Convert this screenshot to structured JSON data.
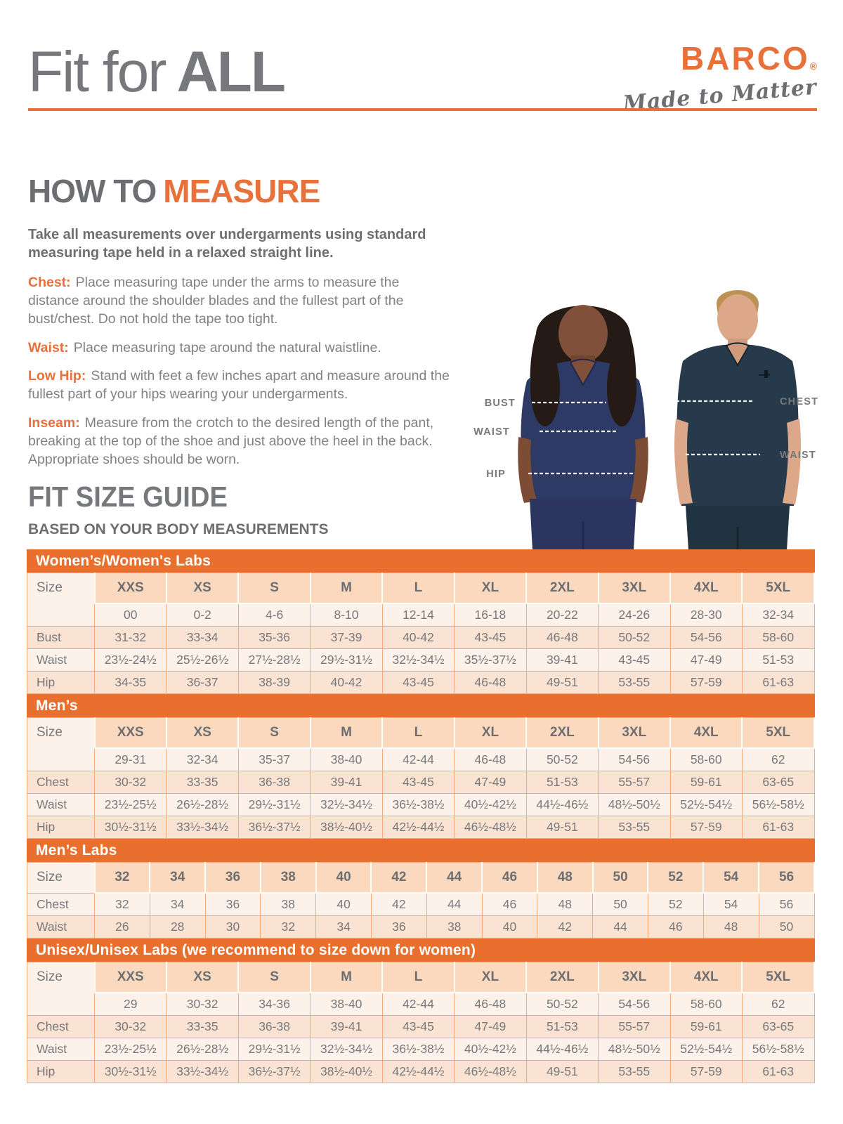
{
  "header": {
    "title_light": "Fit for",
    "title_bold": "ALL",
    "brand": "BARCO",
    "brand_reg": "®",
    "tagline": "Made to Matter"
  },
  "how_to_measure": {
    "title_gray": "HOW TO",
    "title_orange": "MEASURE",
    "intro": "Take all measurements over undergarments using standard measuring tape held in a relaxed straight line.",
    "items": [
      {
        "label": "Chest:",
        "text": "Place measuring tape under the arms to measure the distance around the shoulder blades and the fullest part of the bust/chest. Do not hold the tape too tight."
      },
      {
        "label": "Waist:",
        "text": "Place measuring tape around the natural waistline."
      },
      {
        "label": "Low Hip:",
        "text": "Stand with feet a few inches apart and measure around the fullest part of your hips wearing your undergarments."
      },
      {
        "label": "Inseam:",
        "text": "Measure from the crotch to the desired length of the pant, breaking at the top of the shoe and just above the heel in the back. Appropriate shoes should be worn."
      }
    ]
  },
  "figure": {
    "labels": {
      "bust": "BUST",
      "waist_left": "WAIST",
      "hip": "HIP",
      "chest": "CHEST",
      "waist_right": "WAIST"
    }
  },
  "size_guide": {
    "title": "FIT SIZE GUIDE",
    "subtitle": "BASED ON YOUR BODY MEASUREMENTS",
    "size_label": "Size",
    "tables": [
      {
        "banner": "Women’s/Women's Labs",
        "sizes": [
          "XXS",
          "XS",
          "S",
          "M",
          "L",
          "XL",
          "2XL",
          "3XL",
          "4XL",
          "5XL"
        ],
        "numeric": [
          "00",
          "0-2",
          "4-6",
          "8-10",
          "12-14",
          "16-18",
          "20-22",
          "24-26",
          "28-30",
          "32-34"
        ],
        "rows": [
          {
            "label": "Bust",
            "values": [
              "31-32",
              "33-34",
              "35-36",
              "37-39",
              "40-42",
              "43-45",
              "46-48",
              "50-52",
              "54-56",
              "58-60"
            ]
          },
          {
            "label": "Waist",
            "values": [
              "23½-24½",
              "25½-26½",
              "27½-28½",
              "29½-31½",
              "32½-34½",
              "35½-37½",
              "39-41",
              "43-45",
              "47-49",
              "51-53"
            ]
          },
          {
            "label": "Hip",
            "values": [
              "34-35",
              "36-37",
              "38-39",
              "40-42",
              "43-45",
              "46-48",
              "49-51",
              "53-55",
              "57-59",
              "61-63"
            ]
          }
        ]
      },
      {
        "banner": "Men’s",
        "sizes": [
          "XXS",
          "XS",
          "S",
          "M",
          "L",
          "XL",
          "2XL",
          "3XL",
          "4XL",
          "5XL"
        ],
        "numeric": [
          "29-31",
          "32-34",
          "35-37",
          "38-40",
          "42-44",
          "46-48",
          "50-52",
          "54-56",
          "58-60",
          "62"
        ],
        "rows": [
          {
            "label": "Chest",
            "values": [
              "30-32",
              "33-35",
              "36-38",
              "39-41",
              "43-45",
              "47-49",
              "51-53",
              "55-57",
              "59-61",
              "63-65"
            ]
          },
          {
            "label": "Waist",
            "values": [
              "23½-25½",
              "26½-28½",
              "29½-31½",
              "32½-34½",
              "36½-38½",
              "40½-42½",
              "44½-46½",
              "48½-50½",
              "52½-54½",
              "56½-58½"
            ]
          },
          {
            "label": "Hip",
            "values": [
              "30½-31½",
              "33½-34½",
              "36½-37½",
              "38½-40½",
              "42½-44½",
              "46½-48½",
              "49-51",
              "53-55",
              "57-59",
              "61-63"
            ]
          }
        ]
      },
      {
        "banner": "Men’s Labs",
        "sizes": [
          "32",
          "34",
          "36",
          "38",
          "40",
          "42",
          "44",
          "46",
          "48",
          "50",
          "52",
          "54",
          "56"
        ],
        "numeric": null,
        "rows": [
          {
            "label": "Chest",
            "values": [
              "32",
              "34",
              "36",
              "38",
              "40",
              "42",
              "44",
              "46",
              "48",
              "50",
              "52",
              "54",
              "56"
            ]
          },
          {
            "label": "Waist",
            "values": [
              "26",
              "28",
              "30",
              "32",
              "34",
              "36",
              "38",
              "40",
              "42",
              "44",
              "46",
              "48",
              "50"
            ]
          }
        ]
      },
      {
        "banner": "Unisex/Unisex Labs (we recommend to size down for women)",
        "sizes": [
          "XXS",
          "XS",
          "S",
          "M",
          "L",
          "XL",
          "2XL",
          "3XL",
          "4XL",
          "5XL"
        ],
        "numeric": [
          "29",
          "30-32",
          "34-36",
          "38-40",
          "42-44",
          "46-48",
          "50-52",
          "54-56",
          "58-60",
          "62"
        ],
        "rows": [
          {
            "label": "Chest",
            "values": [
              "30-32",
              "33-35",
              "36-38",
              "39-41",
              "43-45",
              "47-49",
              "51-53",
              "55-57",
              "59-61",
              "63-65"
            ]
          },
          {
            "label": "Waist",
            "values": [
              "23½-25½",
              "26½-28½",
              "29½-31½",
              "32½-34½",
              "36½-38½",
              "40½-42½",
              "44½-46½",
              "48½-50½",
              "52½-54½",
              "56½-58½"
            ]
          },
          {
            "label": "Hip",
            "values": [
              "30½-31½",
              "33½-34½",
              "36½-37½",
              "38½-40½",
              "42½-44½",
              "46½-48½",
              "49-51",
              "53-55",
              "57-59",
              "61-63"
            ]
          }
        ]
      }
    ]
  },
  "colors": {
    "accent_orange": "#E8703A",
    "banner_orange": "#E86F2D",
    "header_peach": "#FBD9BE",
    "row_light": "#FDF2E9",
    "row_dark": "#FBE3D3",
    "text_gray": "#77787B",
    "woman_scrub_navy": "#2D3A65",
    "man_scrub_teal": "#263A4B"
  }
}
